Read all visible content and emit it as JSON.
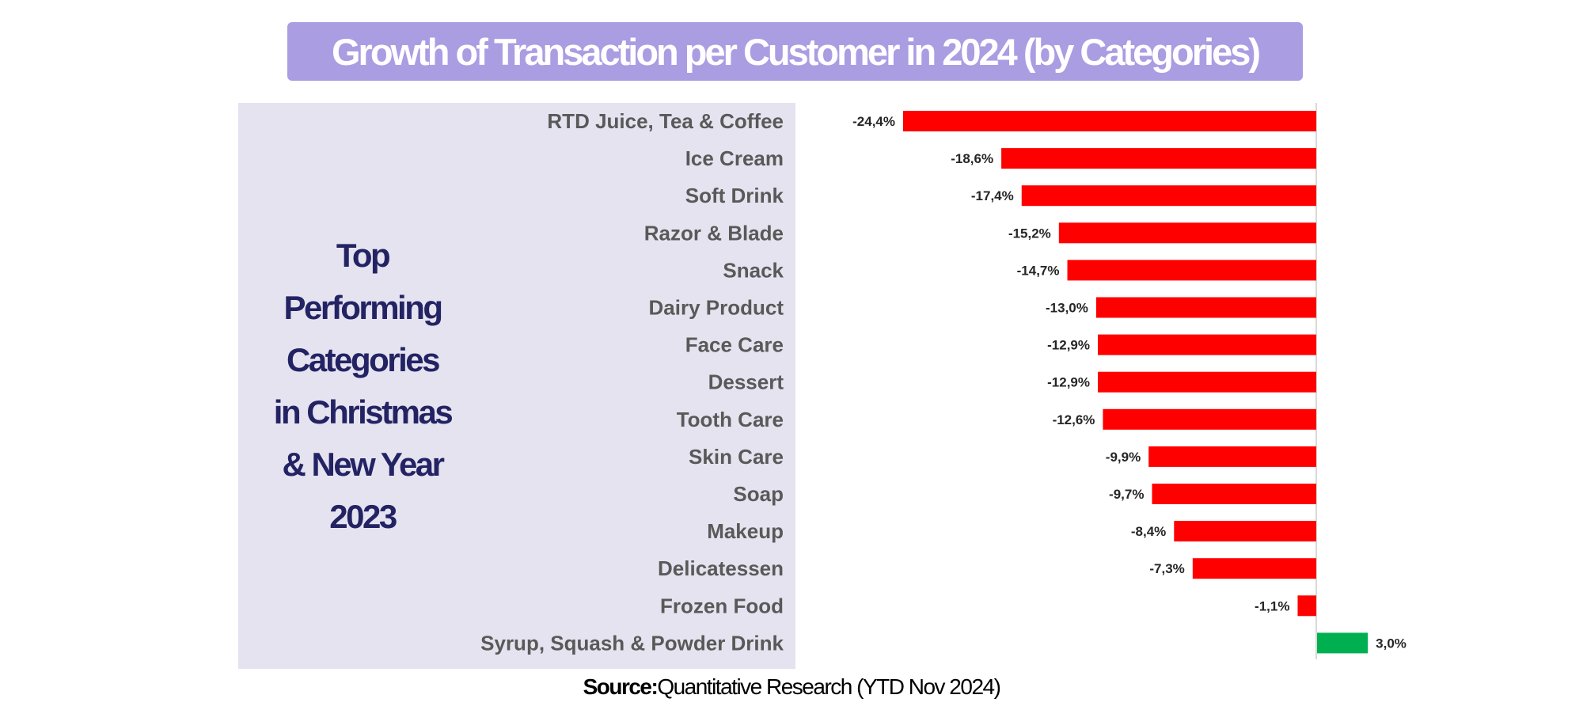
{
  "title": "Growth of Transaction per Customer in 2024 (by Categories)",
  "side_heading": {
    "lines": [
      "Top",
      "Performing",
      "Categories",
      "in Christmas",
      "& New Year",
      "2023"
    ]
  },
  "source": {
    "label": "Source:",
    "text": "Quantitative Research (YTD Nov 2024)"
  },
  "colors": {
    "title_banner": "#aa9de2",
    "panel_background": "#e5e3ef",
    "heading_text": "#232364",
    "negative_bar": "#ff0000",
    "positive_bar": "#00b050",
    "axis_line": "#d9d9d9",
    "category_text": "#595959",
    "value_text": "#262626"
  },
  "chart_data": {
    "type": "bar",
    "orientation": "horizontal",
    "title": "Growth of Transaction per Customer in 2024 (by Categories)",
    "xlabel": "",
    "ylabel": "",
    "unit": "%",
    "xlim": [
      -24.4,
      4.0
    ],
    "grid": false,
    "legend": "none",
    "categories": [
      "RTD Juice, Tea & Coffee",
      "Ice Cream",
      "Soft Drink",
      "Razor & Blade",
      "Snack",
      "Dairy Product",
      "Face Care",
      "Dessert",
      "Tooth Care",
      "Skin Care",
      "Soap",
      "Makeup",
      "Delicatessen",
      "Frozen Food",
      "Syrup, Squash & Powder Drink"
    ],
    "values": [
      -24.4,
      -18.6,
      -17.4,
      -15.2,
      -14.7,
      -13.0,
      -12.9,
      -12.9,
      -12.6,
      -9.9,
      -9.7,
      -8.4,
      -7.3,
      -1.1,
      3.0
    ],
    "data_labels": [
      "-24,4%",
      "-18,6%",
      "-17,4%",
      "-15,2%",
      "-14,7%",
      "-13,0%",
      "-12,9%",
      "-12,9%",
      "-12,6%",
      "-9,9%",
      "-9,7%",
      "-8,4%",
      "-7,3%",
      "-1,1%",
      "3,0%"
    ]
  }
}
